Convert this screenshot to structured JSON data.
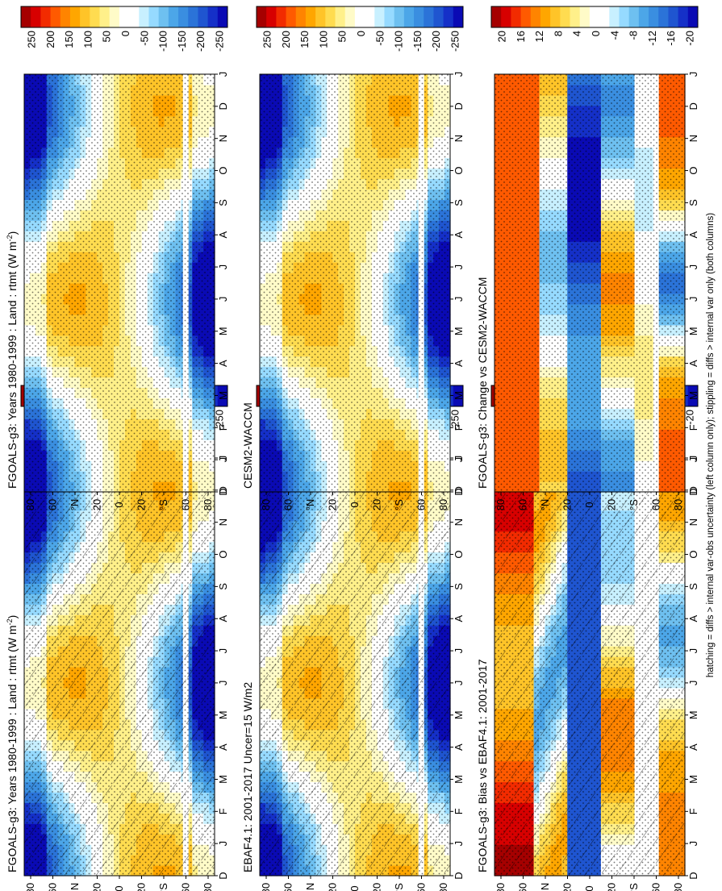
{
  "figure": {
    "footnote": "hatching = diffs > internal var-obs uncertainty (left column only); stippling = diffs > internal var only (both columns)"
  },
  "colors": {
    "flux_scale": [
      "#a50000",
      "#d70000",
      "#f22b00",
      "#ff5a00",
      "#ff8400",
      "#ffa600",
      "#ffc428",
      "#ffdc50",
      "#fff08a",
      "#fffbc8",
      "#ffffff",
      "#ffffff",
      "#c8f0ff",
      "#96daff",
      "#6ec0f0",
      "#4ca6e8",
      "#3a8ee0",
      "#2b73d8",
      "#1f55d0",
      "#1530c8",
      "#0a0ab4"
    ],
    "diff_scale": [
      "#a50000",
      "#d70000",
      "#f22b00",
      "#ff5a00",
      "#ff8400",
      "#ffa600",
      "#ffc428",
      "#ffdc50",
      "#fff08a",
      "#fffbc8",
      "#ffffff",
      "#ffffff",
      "#c8f0ff",
      "#96daff",
      "#6ec0f0",
      "#4ca6e8",
      "#3a8ee0",
      "#2b73d8",
      "#1f55d0",
      "#1530c8",
      "#0a0ab4"
    ]
  },
  "chart_data": [
    {
      "type": "heatmap",
      "panel": "top-left",
      "title": "FGOALS-g3: Years 1980-1999 : Land : rtmt (W m",
      "title_sup": "-2",
      "title_end": ")",
      "months": [
        "D",
        "J",
        "F",
        "M",
        "A",
        "M",
        "J",
        "J",
        "A",
        "S",
        "O",
        "N",
        "D",
        "J"
      ],
      "lat_ticks": [
        "80",
        "60",
        "°N",
        "20",
        "0",
        "20",
        "°S",
        "60",
        "80"
      ],
      "colorbar_ticks": [
        "250",
        "200",
        "150",
        "100",
        "50",
        "0",
        "-50",
        "-100",
        "-150",
        "-200",
        "-250"
      ],
      "range": [
        -275,
        275
      ],
      "hatching": true,
      "stippling": true,
      "field": "annual_cycle"
    },
    {
      "type": "heatmap",
      "panel": "top-right",
      "title": "FGOALS-g3: Years 1980-1999 : Land : rtmt (W m",
      "title_sup": "-2",
      "title_end": ")",
      "months": [
        "D",
        "J",
        "F",
        "M",
        "A",
        "M",
        "J",
        "J",
        "A",
        "S",
        "O",
        "N",
        "D",
        "J"
      ],
      "lat_ticks": [
        "80",
        "60",
        "°N",
        "20",
        "0",
        "20",
        "°S",
        "60",
        "80"
      ],
      "colorbar_ticks": [
        "250",
        "200",
        "150",
        "100",
        "50",
        "0",
        "-50",
        "-100",
        "-150",
        "-200",
        "-250"
      ],
      "range": [
        -275,
        275
      ],
      "hatching": false,
      "stippling": true,
      "field": "annual_cycle"
    },
    {
      "type": "heatmap",
      "panel": "middle-left",
      "title": "EBAF4.1: 2001-2017 Uncer=15 W/m2",
      "title_sup": "",
      "title_end": "",
      "months": [
        "D",
        "J",
        "F",
        "M",
        "A",
        "M",
        "J",
        "J",
        "A",
        "S",
        "O",
        "N",
        "D",
        "J"
      ],
      "lat_ticks": [
        "80",
        "60",
        "°N",
        "20",
        "0",
        "20",
        "°S",
        "60",
        "80"
      ],
      "colorbar_ticks": [
        "250",
        "200",
        "150",
        "100",
        "50",
        "0",
        "-50",
        "-100",
        "-150",
        "-200",
        "-250"
      ],
      "range": [
        -275,
        275
      ],
      "hatching": true,
      "stippling": true,
      "field": "annual_cycle"
    },
    {
      "type": "heatmap",
      "panel": "middle-right",
      "title": "CESM2-WACCM",
      "title_sup": "",
      "title_end": "",
      "months": [
        "D",
        "J",
        "F",
        "M",
        "A",
        "M",
        "J",
        "J",
        "A",
        "S",
        "O",
        "N",
        "D",
        "J"
      ],
      "lat_ticks": [
        "80",
        "60",
        "°N",
        "20",
        "0",
        "20",
        "°S",
        "60",
        "80"
      ],
      "colorbar_ticks": [
        "250",
        "200",
        "150",
        "100",
        "50",
        "0",
        "-50",
        "-100",
        "-150",
        "-200",
        "-250"
      ],
      "range": [
        -275,
        275
      ],
      "hatching": false,
      "stippling": true,
      "field": "annual_cycle"
    },
    {
      "type": "heatmap",
      "panel": "bottom-left",
      "title": "FGOALS-g3: Bias vs EBAF4.1: 2001-2017",
      "title_sup": "",
      "title_end": "",
      "months": [
        "D",
        "J",
        "F",
        "M",
        "A",
        "M",
        "J",
        "J",
        "A",
        "S",
        "O",
        "N",
        "D",
        "J"
      ],
      "lat_ticks": [
        "80",
        "60",
        "°N",
        "20",
        "0",
        "20",
        "°S",
        "60",
        "80"
      ],
      "colorbar_ticks": [
        "20",
        "16",
        "12",
        "8",
        "4",
        "0",
        "-4",
        "-8",
        "-12",
        "-16",
        "-20"
      ],
      "range": [
        -22,
        22
      ],
      "hatching": true,
      "stippling": true,
      "field": "bias"
    },
    {
      "type": "heatmap",
      "panel": "bottom-right",
      "title": "FGOALS-g3: Change vs CESM2-WACCM",
      "title_sup": "",
      "title_end": "",
      "months": [
        "D",
        "J",
        "F",
        "M",
        "A",
        "M",
        "J",
        "J",
        "A",
        "S",
        "O",
        "N",
        "D",
        "J"
      ],
      "lat_ticks": [
        "80",
        "60",
        "°N",
        "20",
        "0",
        "20",
        "°S",
        "60",
        "80"
      ],
      "colorbar_ticks": [
        "20",
        "16",
        "12",
        "8",
        "4",
        "0",
        "-4",
        "-8",
        "-12",
        "-16",
        "-20"
      ],
      "range": [
        -22,
        22
      ],
      "hatching": false,
      "stippling": true,
      "field": "change"
    }
  ]
}
